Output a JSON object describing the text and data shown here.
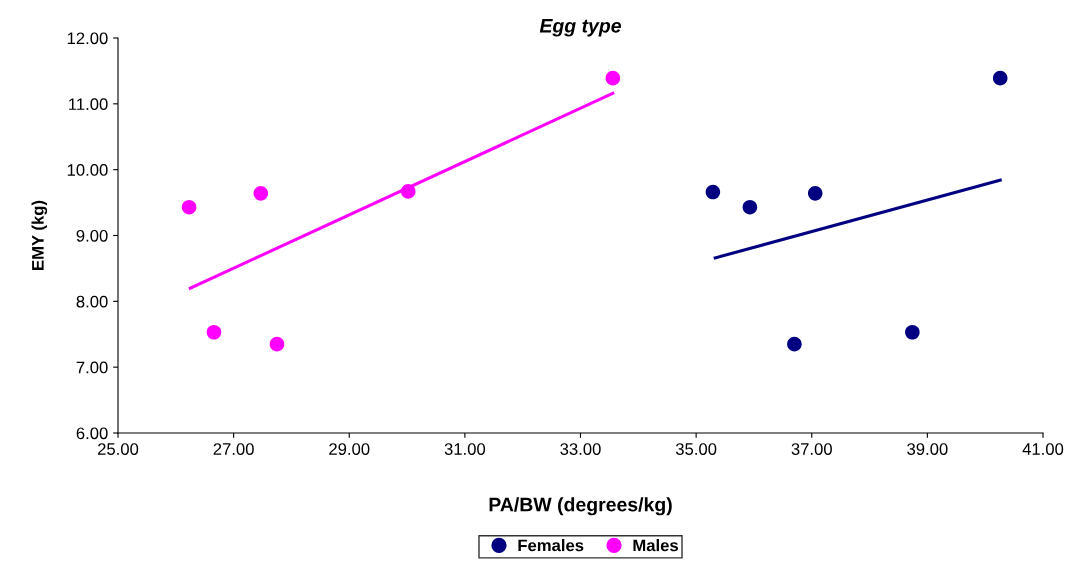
{
  "chart_data": {
    "type": "scatter",
    "title": "Egg type",
    "xlabel": "PA/BW (degrees/kg)",
    "ylabel": "EMY (kg)",
    "xlim": [
      25,
      41
    ],
    "ylim": [
      6,
      12
    ],
    "xticks": [
      {
        "value": 25,
        "label": "25.00"
      },
      {
        "value": 27,
        "label": "27.00"
      },
      {
        "value": 29,
        "label": "29.00"
      },
      {
        "value": 31,
        "label": "31.00"
      },
      {
        "value": 33,
        "label": "33.00"
      },
      {
        "value": 35,
        "label": "35.00"
      },
      {
        "value": 37,
        "label": "37.00"
      },
      {
        "value": 39,
        "label": "39.00"
      },
      {
        "value": 41,
        "label": "41.00"
      }
    ],
    "yticks": [
      {
        "value": 6,
        "label": "6.00"
      },
      {
        "value": 7,
        "label": "7.00"
      },
      {
        "value": 8,
        "label": "8.00"
      },
      {
        "value": 9,
        "label": "9.00"
      },
      {
        "value": 10,
        "label": "10.00"
      },
      {
        "value": 11,
        "label": "11.00"
      },
      {
        "value": 12,
        "label": "12.00"
      }
    ],
    "grid": false,
    "legend": "bottom",
    "marker": "circle",
    "series": [
      {
        "name": "Females",
        "color": "#000080",
        "x": [
          35.29,
          35.93,
          36.7,
          37.06,
          38.74,
          40.26
        ],
        "values": [
          9.66,
          9.43,
          7.35,
          9.64,
          7.53,
          11.39
        ]
      },
      {
        "name": "Males",
        "color": "#ff00ff",
        "x": [
          26.23,
          26.66,
          27.47,
          27.75,
          30.02,
          33.56
        ],
        "values": [
          9.43,
          7.53,
          9.64,
          7.35,
          9.67,
          11.39
        ]
      },
      {
        "type": "line",
        "marker": "none",
        "color": "#000080",
        "x": [
          35.33,
          40.26
        ],
        "values": [
          8.66,
          9.84
        ]
      },
      {
        "type": "line",
        "marker": "none",
        "color": "#ff00ff",
        "x": [
          26.25,
          33.56
        ],
        "values": [
          8.2,
          11.16
        ]
      }
    ]
  }
}
